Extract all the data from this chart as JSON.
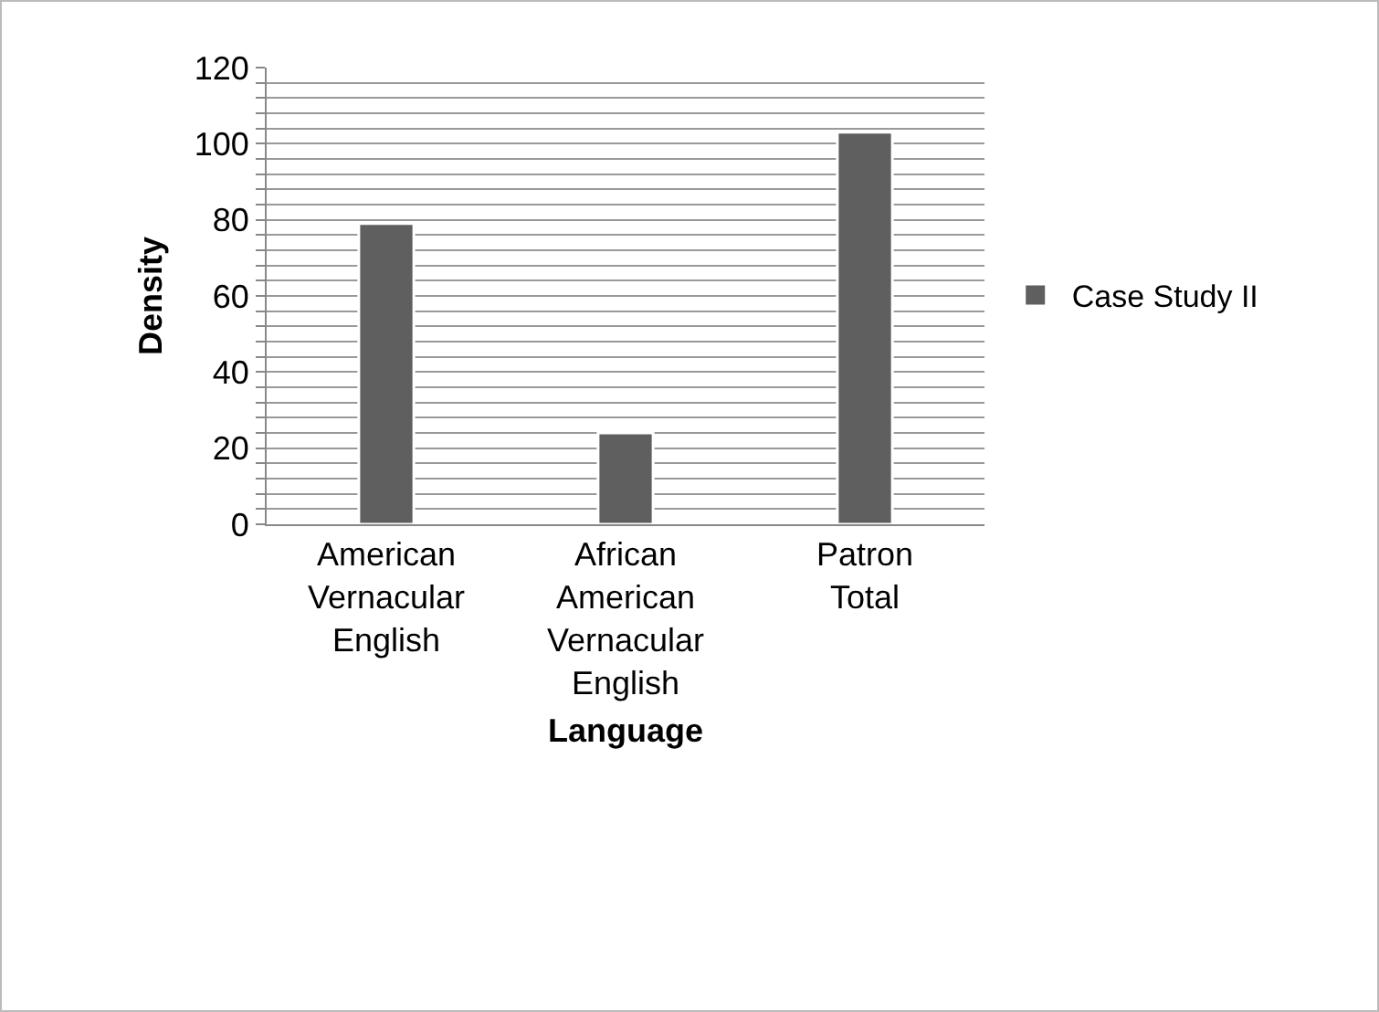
{
  "chart_data": {
    "type": "bar",
    "xlabel": "Language",
    "ylabel": "Density",
    "categories": [
      "American Vernacular English",
      "African American Vernacular English",
      "Patron Total"
    ],
    "series": [
      {
        "name": "Case Study II",
        "color": "#5f5f5f",
        "values": [
          79,
          24,
          103
        ]
      }
    ],
    "ylim": [
      0,
      120
    ],
    "yticks": [
      0,
      {
        "value": 4,
        "label": null
      },
      {
        "value": 8,
        "label": null
      },
      {
        "value": 12,
        "label": null
      },
      {
        "value": 16,
        "label": null
      },
      20,
      {
        "value": 24,
        "label": null
      },
      {
        "value": 28,
        "label": null
      },
      {
        "value": 32,
        "label": null
      },
      {
        "value": 36,
        "label": null
      },
      40,
      {
        "value": 44,
        "label": null
      },
      {
        "value": 48,
        "label": null
      },
      {
        "value": 52,
        "label": null
      },
      {
        "value": 56,
        "label": null
      },
      60,
      {
        "value": 64,
        "label": null
      },
      {
        "value": 68,
        "label": null
      },
      {
        "value": 72,
        "label": null
      },
      {
        "value": 76,
        "label": null
      },
      80,
      {
        "value": 84,
        "label": null
      },
      {
        "value": 88,
        "label": null
      },
      {
        "value": 92,
        "label": null
      },
      {
        "value": 96,
        "label": null
      },
      100,
      {
        "value": 104,
        "label": null
      },
      {
        "value": 108,
        "label": null
      },
      {
        "value": 112,
        "label": null
      },
      {
        "value": 116,
        "label": null
      },
      120
    ],
    "grid": "y",
    "legend": "right"
  }
}
